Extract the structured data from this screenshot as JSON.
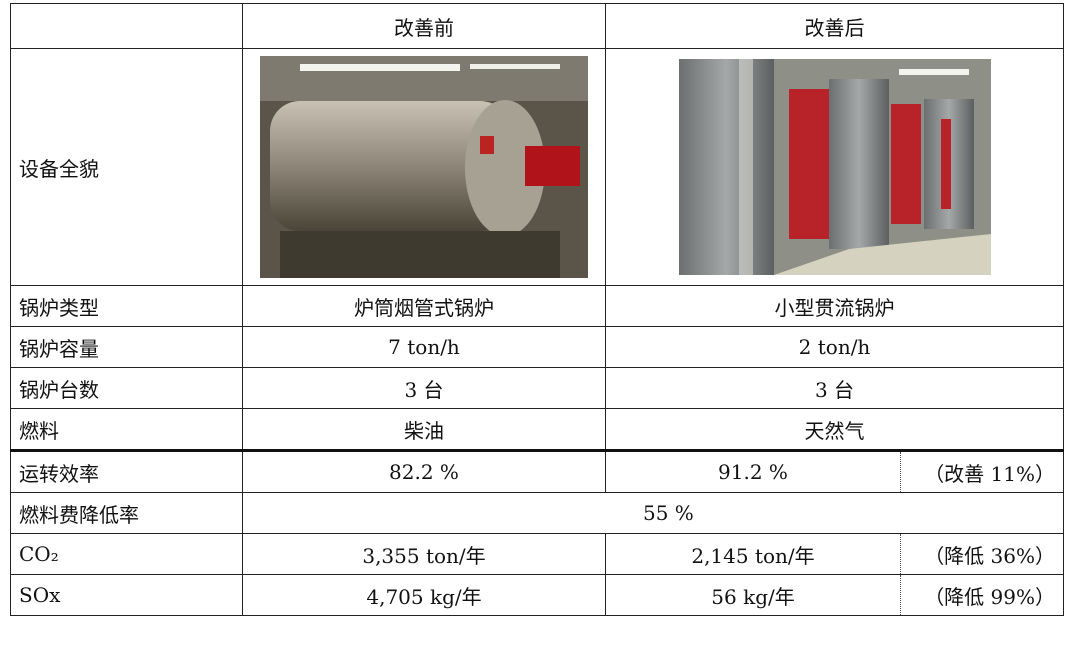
{
  "header": {
    "before": "改善前",
    "after": "改善后"
  },
  "overview": {
    "label": "设备全貌"
  },
  "rows": [
    {
      "label": "锅炉类型",
      "before": "炉筒烟管式锅炉",
      "after": "小型贯流锅炉"
    },
    {
      "label": "锅炉容量",
      "before": "7 ton/h",
      "after": "2 ton/h"
    },
    {
      "label": "锅炉台数",
      "before": "3 台",
      "after": "3 台"
    },
    {
      "label": "燃料",
      "before": "柴油",
      "after": "天然气"
    }
  ],
  "results": [
    {
      "label": "运转效率",
      "before": "82.2 %",
      "after": "91.2 %",
      "note": "（改善 11%）"
    },
    {
      "label": "燃料费降低率",
      "value": "55 %"
    },
    {
      "label": "CO₂",
      "before": "3,355 ton/年",
      "after": "2,145 ton/年",
      "note": "（降低 36%）"
    },
    {
      "label": "SOx",
      "before": "4,705 kg/年",
      "after": "56 kg/年",
      "note": "（降低 99%）"
    }
  ]
}
